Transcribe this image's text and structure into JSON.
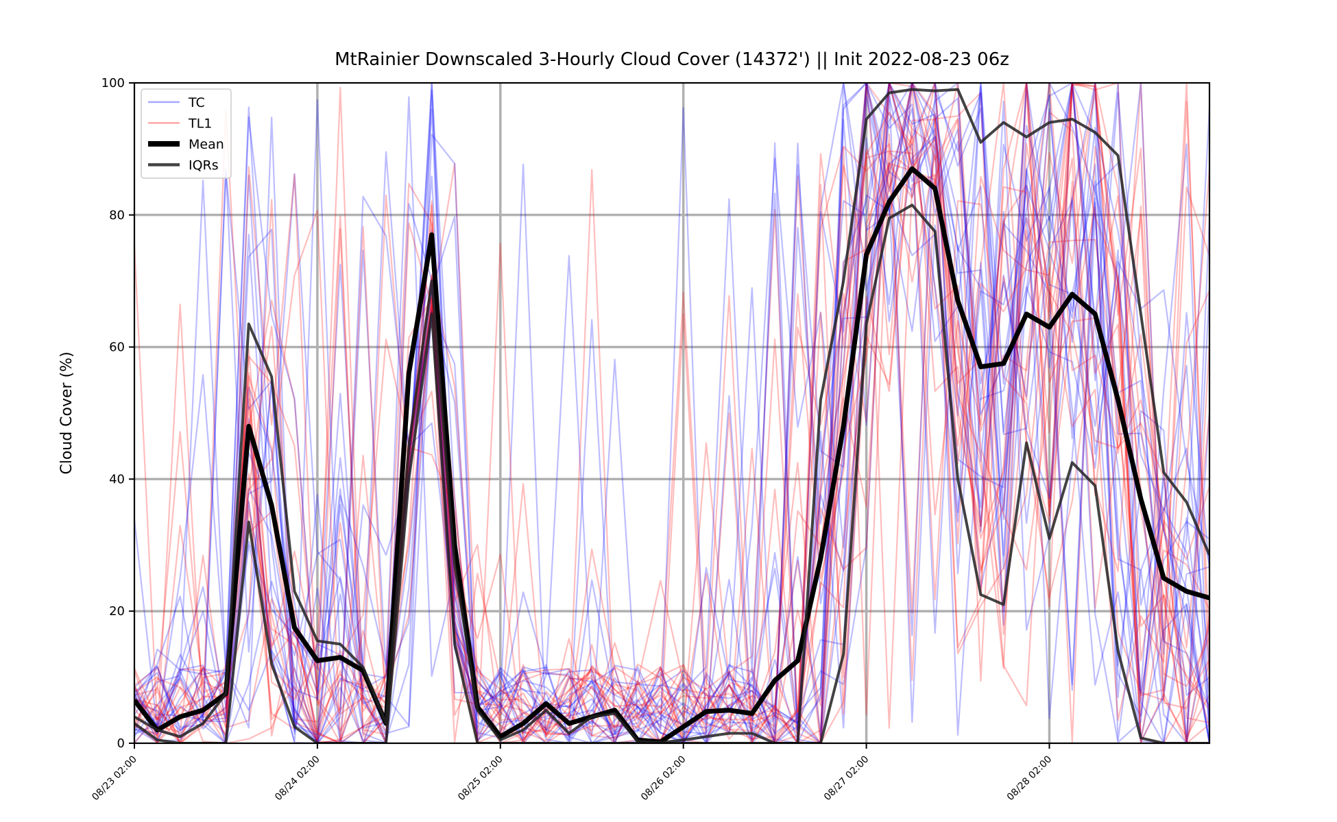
{
  "chart_data": {
    "type": "line",
    "title": "MtRainier Downscaled 3-Hourly Cloud Cover (14372') || Init 2022-08-23 06z",
    "xlabel": "",
    "ylabel": "Cloud Cover (%)",
    "ylim": [
      0,
      100
    ],
    "yticks": [
      0,
      20,
      40,
      60,
      80,
      100
    ],
    "x_start": "08/23 02:00",
    "x_step_hours": 3,
    "n_points": 48,
    "xticks": [
      {
        "index": 0,
        "label": "08/23 02:00"
      },
      {
        "index": 8,
        "label": "08/24 02:00"
      },
      {
        "index": 16,
        "label": "08/25 02:00"
      },
      {
        "index": 24,
        "label": "08/26 02:00"
      },
      {
        "index": 32,
        "label": "08/27 02:00"
      },
      {
        "index": 40,
        "label": "08/28 02:00"
      }
    ],
    "grid": true,
    "legend_position": "upper-left",
    "legend": [
      {
        "label": "TC",
        "color": "#0000ff",
        "style": "thin-transparent"
      },
      {
        "label": "TL1",
        "color": "#ff0000",
        "style": "thin-transparent"
      },
      {
        "label": "Mean",
        "color": "#000000",
        "style": "thick"
      },
      {
        "label": "IQRs",
        "color": "#222222",
        "style": "medium"
      }
    ],
    "series": [
      {
        "name": "Mean",
        "color": "#000000",
        "values": [
          6.5,
          2,
          4,
          5,
          7.5,
          48,
          36,
          17.5,
          12.5,
          13,
          11,
          3,
          56,
          77,
          30,
          5.5,
          1,
          3,
          6,
          3,
          4,
          5,
          0.5,
          0.2,
          2.5,
          4.8,
          5,
          4.5,
          9.5,
          12.5,
          28,
          48,
          74,
          82,
          87,
          84,
          67,
          57,
          57.5,
          65,
          63,
          68,
          65,
          52,
          37,
          25,
          23,
          22
        ]
      },
      {
        "name": "IQRs",
        "color": "#222222",
        "values": [
          4,
          2,
          1,
          3,
          7.5,
          63.5,
          55.5,
          23,
          15.5,
          15,
          11.5,
          3,
          45,
          70,
          27,
          5,
          0.5,
          2,
          5,
          1.5,
          4,
          4.5,
          0.3,
          0.1,
          0.5,
          1,
          1.5,
          1.5,
          0,
          0,
          52,
          70,
          94.5,
          98.5,
          99,
          98.8,
          99,
          91,
          94,
          91.8,
          94,
          94.5,
          92.5,
          89,
          65,
          41,
          36.5,
          28.5
        ]
      },
      {
        "name": "IQRs",
        "color": "#222222",
        "values": [
          3,
          0.5,
          0,
          0,
          0,
          33.5,
          12,
          2.5,
          0,
          0,
          0,
          0,
          40,
          65,
          15,
          0,
          0,
          0,
          0,
          0,
          0,
          0,
          0,
          0,
          0,
          0,
          0,
          0,
          0,
          0,
          0,
          13.5,
          63.5,
          79.5,
          81.5,
          77.5,
          40,
          22.5,
          21,
          45.5,
          31,
          42.5,
          39,
          14,
          0.8,
          0,
          0,
          0
        ]
      }
    ],
    "ensemble_members": {
      "TC": {
        "color": "#0000ff",
        "count": 20
      },
      "TL1": {
        "color": "#ff0000",
        "count": 20
      }
    }
  }
}
